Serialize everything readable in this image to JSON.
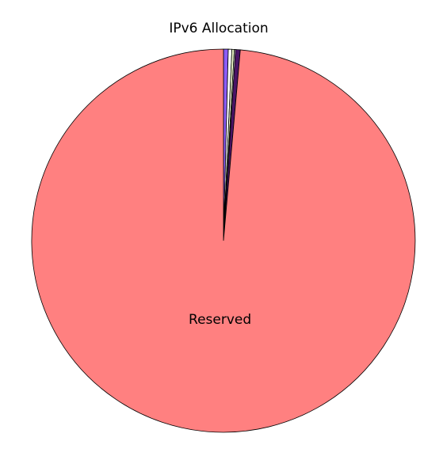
{
  "chart_data": {
    "type": "pie",
    "title": "IPv6 Allocation",
    "start_angle_deg": 0,
    "direction": "clockwise",
    "slices": [
      {
        "label": "",
        "value": 0.4,
        "color": "#8b5cf6"
      },
      {
        "label": "",
        "value": 0.3,
        "color": "#ffffff"
      },
      {
        "label": "",
        "value": 0.2,
        "color": "#e9f5c7"
      },
      {
        "label": "",
        "value": 0.1,
        "color": "#ffffff"
      },
      {
        "label": "",
        "value": 0.4,
        "color": "#4a1466"
      },
      {
        "label": "Reserved",
        "value": 98.6,
        "color": "#ff8080"
      }
    ]
  }
}
